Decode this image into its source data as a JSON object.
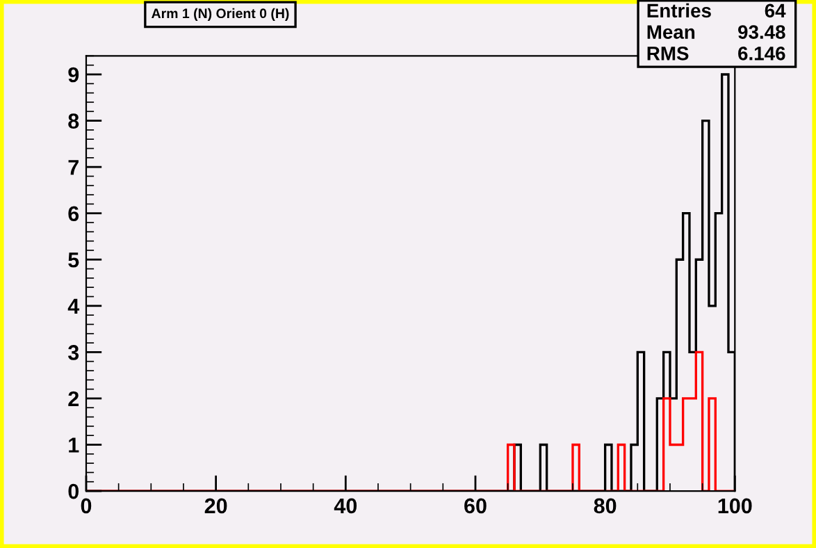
{
  "chart_data": {
    "type": "histogram",
    "title": "Arm 1 (N) Orient 0 (H)",
    "bins": [
      0,
      1,
      2,
      3,
      4,
      5,
      6,
      7,
      8,
      9,
      10,
      11,
      12,
      13,
      14,
      15,
      16,
      17,
      18,
      19,
      20,
      21,
      22,
      23,
      24,
      25,
      26,
      27,
      28,
      29,
      30,
      31,
      32,
      33,
      34,
      35,
      36,
      37,
      38,
      39,
      40,
      41,
      42,
      43,
      44,
      45,
      46,
      47,
      48,
      49,
      50,
      51,
      52,
      53,
      54,
      55,
      56,
      57,
      58,
      59,
      60,
      61,
      62,
      63,
      64,
      65,
      66,
      67,
      68,
      69,
      70,
      71,
      72,
      73,
      74,
      75,
      76,
      77,
      78,
      79,
      80,
      81,
      82,
      83,
      84,
      85,
      86,
      87,
      88,
      89,
      90,
      91,
      92,
      93,
      94,
      95,
      96,
      97,
      98,
      99,
      100
    ],
    "series": [
      {
        "color": "#000000",
        "values": [
          0,
          0,
          0,
          0,
          0,
          0,
          0,
          0,
          0,
          0,
          0,
          0,
          0,
          0,
          0,
          0,
          0,
          0,
          0,
          0,
          0,
          0,
          0,
          0,
          0,
          0,
          0,
          0,
          0,
          0,
          0,
          0,
          0,
          0,
          0,
          0,
          0,
          0,
          0,
          0,
          0,
          0,
          0,
          0,
          0,
          0,
          0,
          0,
          0,
          0,
          0,
          0,
          0,
          0,
          0,
          0,
          0,
          0,
          0,
          0,
          0,
          0,
          0,
          0,
          0,
          0,
          1,
          0,
          0,
          0,
          1,
          0,
          0,
          0,
          0,
          0,
          0,
          0,
          0,
          0,
          1,
          0,
          0,
          0,
          1,
          3,
          0,
          0,
          2,
          3,
          2,
          5,
          6,
          3,
          5,
          8,
          4,
          6,
          9,
          3
        ]
      },
      {
        "color": "#ff0000",
        "values": [
          0,
          0,
          0,
          0,
          0,
          0,
          0,
          0,
          0,
          0,
          0,
          0,
          0,
          0,
          0,
          0,
          0,
          0,
          0,
          0,
          0,
          0,
          0,
          0,
          0,
          0,
          0,
          0,
          0,
          0,
          0,
          0,
          0,
          0,
          0,
          0,
          0,
          0,
          0,
          0,
          0,
          0,
          0,
          0,
          0,
          0,
          0,
          0,
          0,
          0,
          0,
          0,
          0,
          0,
          0,
          0,
          0,
          0,
          0,
          0,
          0,
          0,
          0,
          0,
          0,
          1,
          0,
          0,
          0,
          0,
          0,
          0,
          0,
          0,
          0,
          1,
          0,
          0,
          0,
          0,
          0,
          0,
          1,
          0,
          0,
          0,
          0,
          0,
          0,
          2,
          1,
          1,
          2,
          2,
          3,
          0,
          2,
          0,
          0,
          0
        ]
      }
    ],
    "xlim": [
      0,
      100
    ],
    "xticks": [
      0,
      20,
      40,
      60,
      80,
      100
    ],
    "ylim": [
      0,
      9.4
    ],
    "yticks": [
      0,
      1,
      2,
      3,
      4,
      5,
      6,
      7,
      8,
      9
    ],
    "grid": false,
    "legend": false,
    "annotations": [
      "Entries",
      "64",
      "Mean",
      "93.48",
      "RMS",
      "6.146"
    ]
  }
}
